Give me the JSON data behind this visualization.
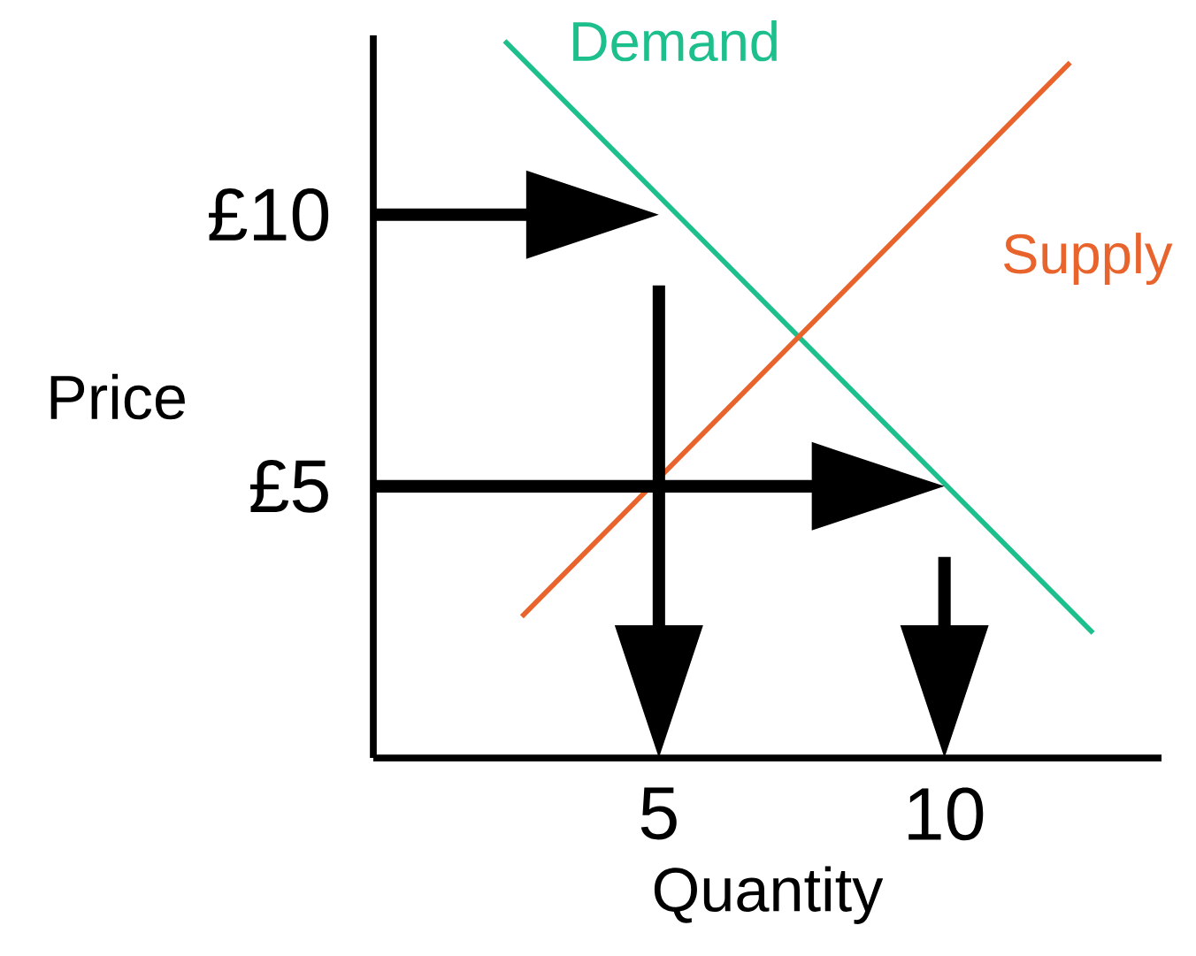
{
  "chart_data": {
    "type": "line",
    "xlabel": "Quantity",
    "ylabel": "Price",
    "xlim": [
      0,
      13.8
    ],
    "ylim": [
      0,
      13.3
    ],
    "xticks": [
      5,
      10
    ],
    "yticks": [
      {
        "value": 5,
        "label": "£5"
      },
      {
        "value": 10,
        "label": "£10"
      }
    ],
    "legend": false,
    "grid": false,
    "series": [
      {
        "name": "Demand",
        "color": "#1dbf8c",
        "x": [
          2.3,
          12.6
        ],
        "values": [
          13.2,
          2.3
        ]
      },
      {
        "name": "Supply",
        "color": "#e8642c",
        "x": [
          2.6,
          12.2
        ],
        "values": [
          2.6,
          12.8
        ]
      }
    ]
  }
}
